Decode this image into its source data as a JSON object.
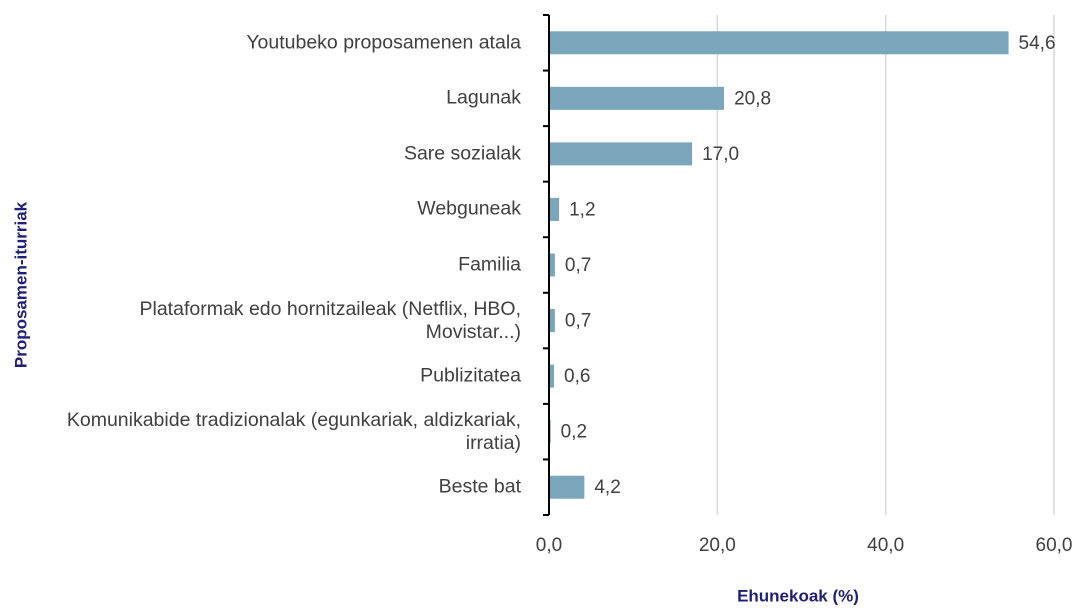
{
  "chart_data": {
    "type": "bar",
    "orientation": "horizontal",
    "x_axis_label": "Ehunekoak (%)",
    "y_axis_label": "Proposamen-iturriak",
    "categories": [
      "Youtubeko proposamenen atala",
      "Lagunak",
      "Sare sozialak",
      "Webguneak",
      "Familia",
      "Plataformak edo hornitzaileak (Netflix, HBO, Movistar...)",
      "Publizitatea",
      "Komunikabide tradizionalak (egunkariak, aldizkariak, irratia)",
      "Beste bat"
    ],
    "values": [
      54.6,
      20.8,
      17.0,
      1.2,
      0.7,
      0.7,
      0.6,
      0.2,
      4.2
    ],
    "value_labels": [
      "54,6",
      "20,8",
      "17,0",
      "1,2",
      "0,7",
      "0,7",
      "0,6",
      "0,2",
      "4,2"
    ],
    "color": "#7aa6bc",
    "xlim": [
      0,
      60
    ],
    "xticks": [
      {
        "value": 0,
        "label": "0,0"
      },
      {
        "value": 20,
        "label": "20,0"
      },
      {
        "value": 40,
        "label": "40,0"
      },
      {
        "value": 60,
        "label": "60,0"
      }
    ],
    "grid": true
  }
}
